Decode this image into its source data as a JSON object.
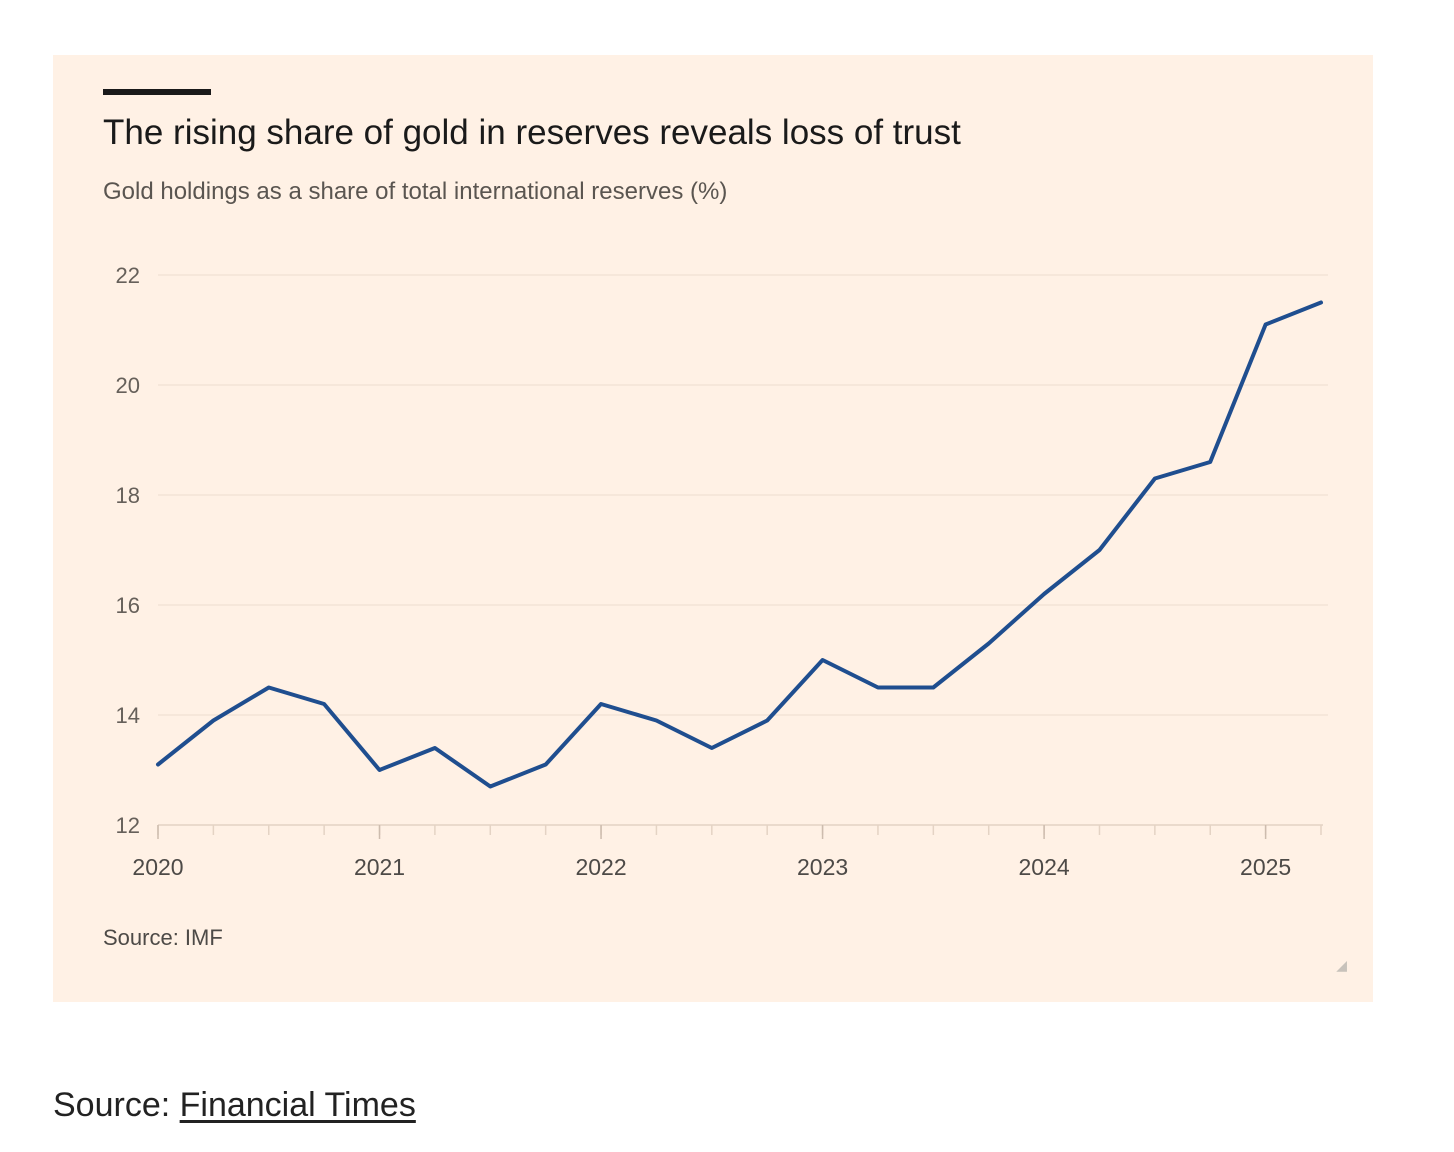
{
  "chart_data": {
    "type": "line",
    "title": "The rising share of gold in reserves reveals loss of trust",
    "subtitle": "Gold holdings as a share of total international reserves (%)",
    "source": "Source: IMF",
    "xlabel": "",
    "ylabel": "",
    "x_tick_labels": [
      "2020",
      "2021",
      "2022",
      "2023",
      "2024",
      "2025"
    ],
    "y_tick_labels": [
      "22",
      "20",
      "18",
      "16",
      "14",
      "12"
    ],
    "ylim": [
      12,
      22
    ],
    "xlim": [
      2020.0,
      2025.25
    ],
    "grid": true,
    "line_color": "#1f4e8f",
    "series": [
      {
        "x": [
          2020.0,
          2020.25,
          2020.5,
          2020.75,
          2021.0,
          2021.25,
          2021.5,
          2021.75,
          2022.0,
          2022.25,
          2022.5,
          2022.75,
          2023.0,
          2023.25,
          2023.5,
          2023.75,
          2024.0,
          2024.25,
          2024.5,
          2024.75,
          2025.0,
          2025.25
        ],
        "values": [
          13.1,
          13.9,
          14.5,
          14.2,
          13.0,
          13.4,
          12.7,
          13.1,
          14.2,
          13.9,
          13.4,
          13.9,
          15.0,
          14.5,
          14.5,
          15.3,
          16.2,
          17.0,
          18.3,
          18.6,
          21.1,
          21.5
        ]
      }
    ]
  },
  "page": {
    "source_prefix": "Source: ",
    "source_link": "Financial Times"
  }
}
